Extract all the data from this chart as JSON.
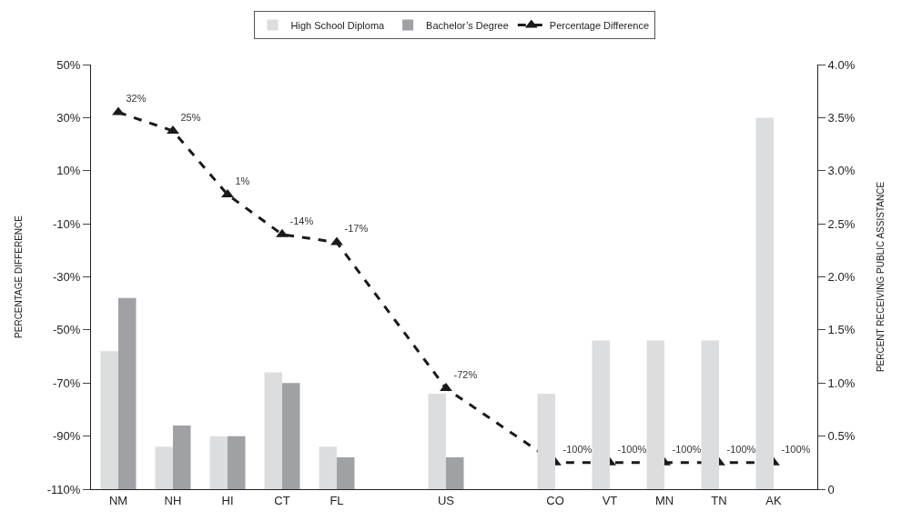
{
  "chart_data": {
    "type": "bar",
    "categories": [
      "NM",
      "NH",
      "HI",
      "CT",
      "FL",
      null,
      "US",
      null,
      "CO",
      "VT",
      "MN",
      "TN",
      "AK"
    ],
    "series": [
      {
        "name": "High School Diploma",
        "type": "bar",
        "axis": "y2",
        "color": "#dcdddf",
        "values": [
          1.3,
          0.4,
          0.5,
          1.1,
          0.4,
          null,
          0.9,
          null,
          0.9,
          1.4,
          1.4,
          1.4,
          3.5
        ]
      },
      {
        "name": "Bachelor’s Degree",
        "type": "bar",
        "axis": "y2",
        "color": "#a0a1a4",
        "values": [
          1.8,
          0.6,
          0.5,
          1.0,
          0.3,
          null,
          0.3,
          null,
          0,
          0,
          0,
          0,
          0
        ]
      },
      {
        "name": "Percentage Difference",
        "type": "line",
        "axis": "y",
        "color": "#1a1a1a",
        "marker": "triangle",
        "line_style": "dashed",
        "values": [
          32,
          25,
          1,
          -14,
          -17,
          null,
          -72,
          null,
          -100,
          -100,
          -100,
          -100,
          -100
        ],
        "value_labels": [
          "32%",
          "25%",
          "1%",
          "-14%",
          "-17%",
          null,
          "-72%",
          null,
          "-100%",
          "-100%",
          "-100%",
          "-100%",
          "-100%"
        ]
      }
    ],
    "ylabel": "PERCENTAGE DIFFERENCE",
    "y2label": "PERCENT RECEIVING PUBLIC ASSISTANCE",
    "ylim": [
      -110,
      50
    ],
    "yticks": [
      {
        "value": -110,
        "label": "-110%"
      },
      {
        "value": -90,
        "label": "-90%"
      },
      {
        "value": -70,
        "label": "-70%"
      },
      {
        "value": -50,
        "label": "-50%"
      },
      {
        "value": -30,
        "label": "-30%"
      },
      {
        "value": -10,
        "label": "-10%"
      },
      {
        "value": 10,
        "label": "10%"
      },
      {
        "value": 30,
        "label": "30%"
      },
      {
        "value": 50,
        "label": "50%"
      }
    ],
    "y2lim": [
      0,
      4
    ],
    "y2ticks": [
      0,
      {
        "value": 0.5,
        "label": "0.5%"
      },
      {
        "value": 1,
        "label": "1.0%"
      },
      {
        "value": 1.5,
        "label": "1.5%"
      },
      {
        "value": 2,
        "label": "2.0%"
      },
      {
        "value": 2.5,
        "label": "2.5%"
      },
      {
        "value": 3,
        "label": "3.0%"
      },
      {
        "value": 3.5,
        "label": "3.5%"
      },
      {
        "value": 4,
        "label": "4.0%"
      }
    ],
    "grid": false,
    "legend": "top"
  }
}
